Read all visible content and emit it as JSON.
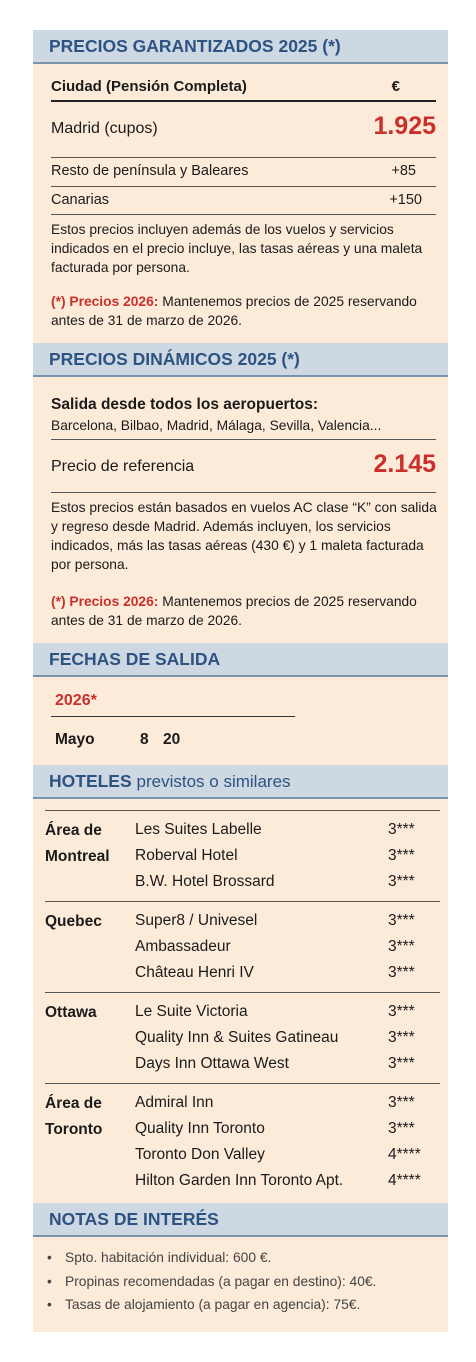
{
  "garantizados": {
    "title": "PRECIOS GARANTIZADOS 2025 (*)",
    "table": {
      "header": [
        "Ciudad  (Pensión Completa)",
        "€"
      ],
      "rows": [
        [
          "Madrid (cupos)",
          "1.925"
        ],
        [
          "Resto de península y Baleares",
          "+85"
        ],
        [
          "Canarias",
          "+150"
        ]
      ]
    },
    "note": "Estos precios incluyen además de los vuelos y servicios indicados en el precio incluye, las tasas aéreas y una maleta facturada por persona.",
    "star_label": "(*)  Precios 2026:",
    "star_text": "Mantenemos precios de 2025 reservando antes de 31 de marzo de 2026."
  },
  "dinamicos": {
    "title": "PRECIOS DINÁMICOS 2025 (*)",
    "departure_title": "Salida desde todos los aeropuertos:",
    "departure_cities": "Barcelona, Bilbao, Madrid, Málaga, Sevilla, Valencia...",
    "reference_label": "Precio de referencia",
    "reference_price": "2.145",
    "note": "Estos precios están basados en vuelos AC clase “K” con salida y regreso desde Madrid. Además incluyen, los servicios indicados, más las tasas aéreas (430 €) y 1 maleta facturada por persona.",
    "star_label": "(*)  Precios 2026:",
    "star_text": "Mantenemos precios de 2025 reservando antes de 31 de marzo de 2026."
  },
  "fechas": {
    "title": "FECHAS DE SALIDA",
    "year": "2026*",
    "month": "Mayo",
    "days": [
      "8",
      "20"
    ]
  },
  "hoteles": {
    "title": "HOTELES",
    "subtitle": "previstos o similares",
    "groups": [
      {
        "city": "Área de Montreal",
        "hotels": [
          [
            "Les Suites Labelle",
            "3***"
          ],
          [
            "Roberval Hotel",
            "3***"
          ],
          [
            "B.W. Hotel Brossard",
            "3***"
          ]
        ]
      },
      {
        "city": "Quebec",
        "hotels": [
          [
            "Super8 / Univesel",
            "3***"
          ],
          [
            "Ambassadeur",
            "3***"
          ],
          [
            "Château Henri IV",
            "3***"
          ]
        ]
      },
      {
        "city": "Ottawa",
        "hotels": [
          [
            "Le Suite Victoria",
            "3***"
          ],
          [
            "Quality Inn & Suites Gatineau",
            "3***"
          ],
          [
            "Days Inn Ottawa West",
            "3***"
          ]
        ]
      },
      {
        "city": "Área de Toronto",
        "hotels": [
          [
            "Admiral Inn",
            "3***"
          ],
          [
            "Quality Inn Toronto",
            "3***"
          ],
          [
            "Toronto Don Valley",
            "4****"
          ],
          [
            "Hilton Garden Inn Toronto Apt.",
            "4****"
          ]
        ]
      }
    ]
  },
  "notas": {
    "title": "NOTAS DE INTERÉS",
    "items": [
      "Spto. habitación individual: 600 €.",
      "Propinas recomendadas (a pagar en destino): 40€.",
      "Tasas de alojamiento (a pagar en agencia): 75€."
    ]
  }
}
